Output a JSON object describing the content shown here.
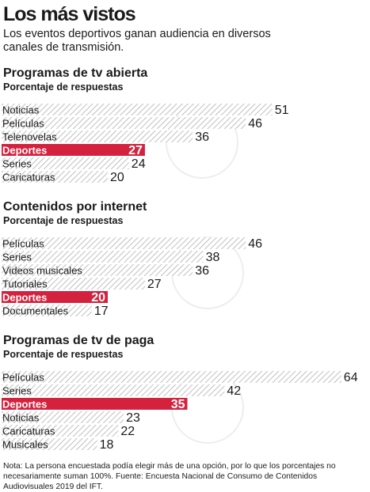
{
  "header": {
    "title": "Los más vistos",
    "subtitle": "Los eventos deportivos ganan audiencia en diversos canales de transmisión."
  },
  "colors": {
    "highlight": "#d4213d",
    "hatch": "#b0b0b0",
    "text": "#1a1a1a"
  },
  "chart_data": [
    {
      "type": "bar",
      "title": "Programas de tv abierta",
      "subtitle": "Porcentaje de respuestas",
      "categories": [
        "Noticias",
        "Películas",
        "Telenovelas",
        "Deportes",
        "Series",
        "Caricaturas"
      ],
      "values": [
        51,
        46,
        36,
        27,
        24,
        20
      ],
      "highlight": "Deportes"
    },
    {
      "type": "bar",
      "title": "Contenidos por internet",
      "subtitle": "Porcentaje de respuestas",
      "categories": [
        "Películas",
        "Series",
        "Videos musicales",
        "Tutoriales",
        "Deportes",
        "Documentales"
      ],
      "values": [
        46,
        38,
        36,
        27,
        20,
        17
      ],
      "highlight": "Deportes"
    },
    {
      "type": "bar",
      "title": "Programas de tv de paga",
      "subtitle": "Porcentaje de respuestas",
      "categories": [
        "Películas",
        "Series",
        "Deportes",
        "Noticias",
        "Caricaturas",
        "Musicales"
      ],
      "values": [
        64,
        42,
        35,
        23,
        22,
        18
      ],
      "highlight": "Deportes"
    }
  ],
  "footnote": "Nota: La persona encuestada podía elegir más de una opción, por lo que los porcentajes no necesariamente suman 100%. Fuente: Encuesta Nacional de Consumo de Contenidos Audiovisuales 2019 del IFT."
}
